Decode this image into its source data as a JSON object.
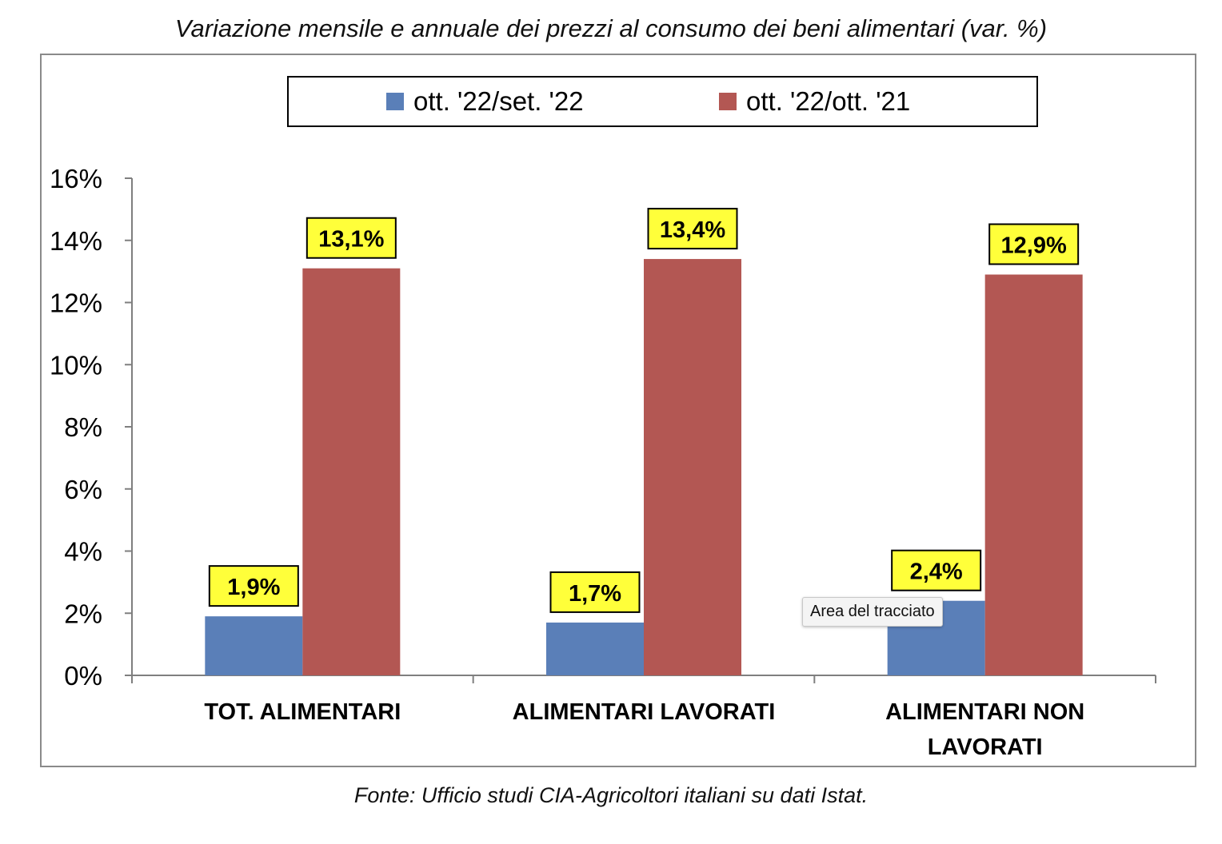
{
  "chart_data": {
    "type": "bar",
    "title": "Variazione mensile e annuale dei prezzi al consumo dei beni alimentari (var. %)",
    "categories": [
      [
        "TOT. ALIMENTARI"
      ],
      [
        "ALIMENTARI LAVORATI"
      ],
      [
        "ALIMENTARI NON",
        "LAVORATI"
      ]
    ],
    "series": [
      {
        "name": "ott. '22/set. '22",
        "color": "#5a7fb8",
        "values": [
          1.9,
          1.7,
          2.4
        ],
        "labels": [
          "1,9%",
          "1,7%",
          "2,4%"
        ]
      },
      {
        "name": "ott. '22/ott. '21",
        "color": "#b35753",
        "values": [
          13.1,
          13.4,
          12.9
        ],
        "labels": [
          "13,1%",
          "13,4%",
          "12,9%"
        ]
      }
    ],
    "ylim": [
      0,
      16
    ],
    "yticks": [
      "0%",
      "2%",
      "4%",
      "6%",
      "8%",
      "10%",
      "12%",
      "14%",
      "16%"
    ],
    "data_label_bg": "#ffff3a",
    "legend_position": "top",
    "grid": false
  },
  "source_note": "Fonte: Ufficio studi CIA-Agricoltori italiani su dati Istat.",
  "tooltip": "Area del tracciato"
}
